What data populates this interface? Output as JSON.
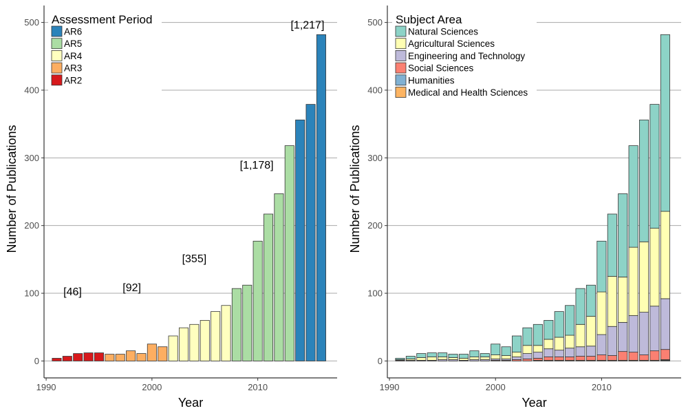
{
  "chart_data": [
    {
      "type": "bar",
      "stacked": false,
      "xlabel": "Year",
      "ylabel": "Number of Publications",
      "xlim": [
        1989.8,
        2017.5
      ],
      "ylim": [
        -25,
        525
      ],
      "xticks": [
        1990,
        2000,
        2010
      ],
      "yticks": [
        0,
        100,
        200,
        300,
        400,
        500
      ],
      "grid": "horizontal major",
      "legend": {
        "title": "Assessment Period",
        "placement": "top-left",
        "entries": [
          {
            "name": "AR6",
            "color": "#2b83ba"
          },
          {
            "name": "AR5",
            "color": "#abdda4"
          },
          {
            "name": "AR4",
            "color": "#ffffbf"
          },
          {
            "name": "AR3",
            "color": "#fdae61"
          },
          {
            "name": "AR2",
            "color": "#d7191c"
          }
        ]
      },
      "bars": [
        {
          "year": 1991,
          "value": 4,
          "period": "AR2"
        },
        {
          "year": 1992,
          "value": 7,
          "period": "AR2"
        },
        {
          "year": 1993,
          "value": 11,
          "period": "AR2"
        },
        {
          "year": 1994,
          "value": 12,
          "period": "AR2"
        },
        {
          "year": 1995,
          "value": 12,
          "period": "AR2"
        },
        {
          "year": 1996,
          "value": 10,
          "period": "AR3"
        },
        {
          "year": 1997,
          "value": 10,
          "period": "AR3"
        },
        {
          "year": 1998,
          "value": 15,
          "period": "AR3"
        },
        {
          "year": 1999,
          "value": 11,
          "period": "AR3"
        },
        {
          "year": 2000,
          "value": 25,
          "period": "AR3"
        },
        {
          "year": 2001,
          "value": 21,
          "period": "AR3"
        },
        {
          "year": 2002,
          "value": 37,
          "period": "AR4"
        },
        {
          "year": 2003,
          "value": 49,
          "period": "AR4"
        },
        {
          "year": 2004,
          "value": 54,
          "period": "AR4"
        },
        {
          "year": 2005,
          "value": 60,
          "period": "AR4"
        },
        {
          "year": 2006,
          "value": 73,
          "period": "AR4"
        },
        {
          "year": 2007,
          "value": 82,
          "period": "AR4"
        },
        {
          "year": 2008,
          "value": 107,
          "period": "AR5"
        },
        {
          "year": 2009,
          "value": 112,
          "period": "AR5"
        },
        {
          "year": 2010,
          "value": 177,
          "period": "AR5"
        },
        {
          "year": 2011,
          "value": 217,
          "period": "AR5"
        },
        {
          "year": 2012,
          "value": 247,
          "period": "AR5"
        },
        {
          "year": 2013,
          "value": 318,
          "period": "AR5"
        },
        {
          "year": 2014,
          "value": 356,
          "period": "AR6"
        },
        {
          "year": 2015,
          "value": 379,
          "period": "AR6"
        },
        {
          "year": 2016,
          "value": 482,
          "period": "AR6"
        }
      ],
      "annotations": [
        {
          "text": "[46]",
          "x": 1992.5,
          "y": 97
        },
        {
          "text": "[92]",
          "x": 1998.1,
          "y": 103
        },
        {
          "text": "[355]",
          "x": 2004.0,
          "y": 146
        },
        {
          "text": "[1,178]",
          "x": 2009.9,
          "y": 284
        },
        {
          "text": "[1,217]",
          "x": 2014.7,
          "y": 491
        }
      ]
    },
    {
      "type": "bar",
      "stacked": true,
      "xlabel": "Year",
      "ylabel": "Number of Publications",
      "xlim": [
        1989.8,
        2017.5
      ],
      "ylim": [
        -25,
        525
      ],
      "xticks": [
        1990,
        2000,
        2010
      ],
      "yticks": [
        0,
        100,
        200,
        300,
        400,
        500
      ],
      "grid": "horizontal major",
      "legend": {
        "title": "Subject Area",
        "placement": "top-left",
        "entries": [
          {
            "name": "Natural Sciences",
            "color": "#8dd3c7"
          },
          {
            "name": "Agricultural Sciences",
            "color": "#ffffb3"
          },
          {
            "name": "Engineering and Technology",
            "color": "#bebada"
          },
          {
            "name": "Social Sciences",
            "color": "#fb8072"
          },
          {
            "name": "Humanities",
            "color": "#80b1d3"
          },
          {
            "name": "Medical and Health Sciences",
            "color": "#fdb462"
          }
        ]
      },
      "categories": [
        1991,
        1992,
        1993,
        1994,
        1995,
        1996,
        1997,
        1998,
        1999,
        2000,
        2001,
        2002,
        2003,
        2004,
        2005,
        2006,
        2007,
        2008,
        2009,
        2010,
        2011,
        2012,
        2013,
        2014,
        2015,
        2016
      ],
      "series": [
        {
          "name": "Humanities",
          "color": "#80b1d3",
          "values": [
            0,
            0,
            0,
            0,
            0,
            0,
            0,
            0,
            0,
            0,
            0,
            0,
            0,
            0,
            0,
            0,
            0,
            0,
            0,
            0,
            0,
            0,
            0,
            0,
            0,
            1
          ]
        },
        {
          "name": "Medical and Health Sciences",
          "color": "#fdb462",
          "values": [
            0,
            0,
            0,
            0,
            0,
            0,
            0,
            0,
            0,
            0,
            0,
            0,
            0,
            1,
            1,
            1,
            1,
            1,
            1,
            1,
            1,
            1,
            1,
            1,
            1,
            1
          ]
        },
        {
          "name": "Social Sciences",
          "color": "#fb8072",
          "values": [
            0,
            0,
            0,
            0,
            0,
            0,
            0,
            0,
            0,
            1,
            1,
            2,
            3,
            3,
            5,
            5,
            5,
            6,
            6,
            8,
            7,
            13,
            12,
            8,
            14,
            15
          ]
        },
        {
          "name": "Engineering and Technology",
          "color": "#bebada",
          "values": [
            1,
            1,
            1,
            1,
            2,
            2,
            1,
            2,
            2,
            2,
            2,
            4,
            8,
            9,
            12,
            10,
            13,
            14,
            15,
            30,
            43,
            43,
            54,
            63,
            66,
            75
          ]
        },
        {
          "name": "Agricultural Sciences",
          "color": "#ffffb3",
          "values": [
            1,
            2,
            4,
            5,
            4,
            3,
            3,
            4,
            4,
            6,
            5,
            7,
            12,
            10,
            14,
            19,
            19,
            33,
            44,
            63,
            74,
            67,
            101,
            104,
            115,
            129
          ]
        },
        {
          "name": "Natural Sciences",
          "color": "#8dd3c7",
          "values": [
            2,
            4,
            6,
            6,
            6,
            5,
            6,
            9,
            5,
            16,
            13,
            24,
            26,
            31,
            28,
            38,
            44,
            53,
            46,
            75,
            92,
            123,
            150,
            180,
            183,
            261
          ]
        }
      ]
    }
  ]
}
